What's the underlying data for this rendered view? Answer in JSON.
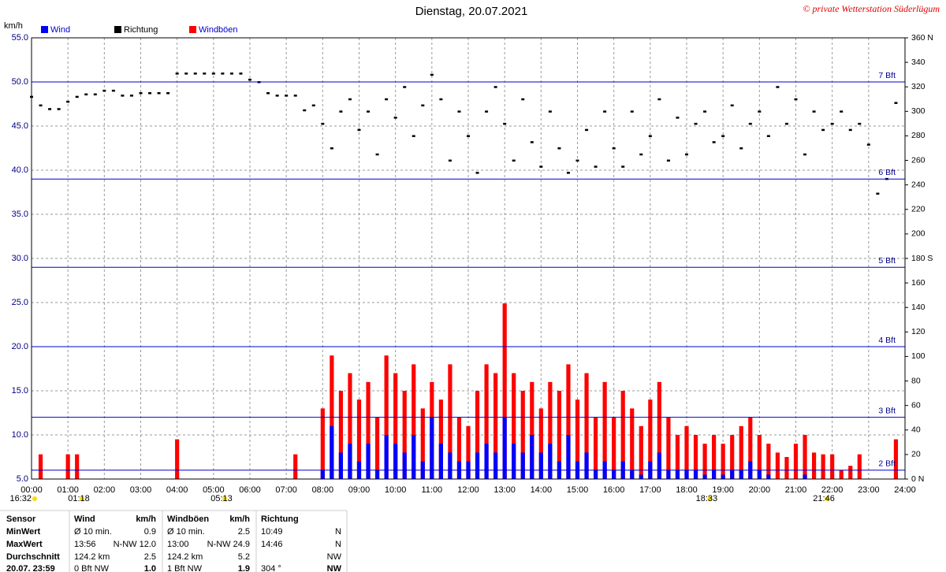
{
  "chart_data": {
    "type": "bar",
    "title": "Dienstag, 20.07.2021",
    "copyright": "© private Wetterstation Süderlügum",
    "y_unit": "km/h",
    "xlim": [
      0,
      24
    ],
    "xticks": [
      {
        "value": 0,
        "label": "00:00"
      },
      {
        "value": 1,
        "label": "01:00"
      },
      {
        "value": 2,
        "label": "02:00"
      },
      {
        "value": 3,
        "label": "03:00"
      },
      {
        "value": 4,
        "label": "04:00"
      },
      {
        "value": 5,
        "label": "05:00"
      },
      {
        "value": 6,
        "label": "06:00"
      },
      {
        "value": 7,
        "label": "07:00"
      },
      {
        "value": 8,
        "label": "08:00"
      },
      {
        "value": 9,
        "label": "09:00"
      },
      {
        "value": 10,
        "label": "10:00"
      },
      {
        "value": 11,
        "label": "11:00"
      },
      {
        "value": 12,
        "label": "12:00"
      },
      {
        "value": 13,
        "label": "13:00"
      },
      {
        "value": 14,
        "label": "14:00"
      },
      {
        "value": 15,
        "label": "15:00"
      },
      {
        "value": 16,
        "label": "16:00"
      },
      {
        "value": 17,
        "label": "17:00"
      },
      {
        "value": 18,
        "label": "18:00"
      },
      {
        "value": 19,
        "label": "19:00"
      },
      {
        "value": 20,
        "label": "20:00"
      },
      {
        "value": 21,
        "label": "21:00"
      },
      {
        "value": 22,
        "label": "22:00"
      },
      {
        "value": 23,
        "label": "23:00"
      },
      {
        "value": 24,
        "label": "24:00"
      }
    ],
    "ylim": [
      5,
      55
    ],
    "yticks": [
      {
        "value": 5,
        "label": "5.0"
      },
      {
        "value": 10,
        "label": "10.0"
      },
      {
        "value": 15,
        "label": "15.0"
      },
      {
        "value": 20,
        "label": "20.0"
      },
      {
        "value": 25,
        "label": "25.0"
      },
      {
        "value": 30,
        "label": "30.0"
      },
      {
        "value": 35,
        "label": "35.0"
      },
      {
        "value": 40,
        "label": "40.0"
      },
      {
        "value": 45,
        "label": "45.0"
      },
      {
        "value": 50,
        "label": "50.0"
      },
      {
        "value": 55,
        "label": "55.0"
      }
    ],
    "y2lim": [
      0,
      360
    ],
    "y2ticks": [
      {
        "value": 0,
        "label": "0  N"
      },
      20,
      40,
      60,
      80,
      100,
      120,
      140,
      160,
      {
        "value": 180,
        "label": "180  S"
      },
      200,
      220,
      240,
      260,
      280,
      300,
      320,
      340,
      {
        "value": 360,
        "label": "360  N"
      }
    ],
    "grid": true,
    "bft_lines": [
      {
        "value": 6,
        "label": "2 Bft"
      },
      {
        "value": 12,
        "label": "3 Bft"
      },
      {
        "value": 20,
        "label": "4 Bft"
      },
      {
        "value": 29,
        "label": "5 Bft"
      },
      {
        "value": 39,
        "label": "6 Bft"
      },
      {
        "value": 50,
        "label": "7 Bft"
      }
    ],
    "bft_color": "#0000cc",
    "x": [
      0,
      0.25,
      0.5,
      0.75,
      1,
      1.25,
      1.5,
      1.75,
      2,
      2.25,
      2.5,
      2.75,
      3,
      3.25,
      3.5,
      3.75,
      4,
      4.25,
      4.5,
      4.75,
      5,
      5.25,
      5.5,
      5.75,
      6,
      6.25,
      6.5,
      6.75,
      7,
      7.25,
      7.5,
      7.75,
      8,
      8.25,
      8.5,
      8.75,
      9,
      9.25,
      9.5,
      9.75,
      10,
      10.25,
      10.5,
      10.75,
      11,
      11.25,
      11.5,
      11.75,
      12,
      12.25,
      12.5,
      12.75,
      13,
      13.25,
      13.5,
      13.75,
      14,
      14.25,
      14.5,
      14.75,
      15,
      15.25,
      15.5,
      15.75,
      16,
      16.25,
      16.5,
      16.75,
      17,
      17.25,
      17.5,
      17.75,
      18,
      18.25,
      18.5,
      18.75,
      19,
      19.25,
      19.5,
      19.75,
      20,
      20.25,
      20.5,
      20.75,
      21,
      21.25,
      21.5,
      21.75,
      22,
      22.25,
      22.5,
      22.75,
      23,
      23.25,
      23.5,
      23.75
    ],
    "series": [
      {
        "name": "Wind",
        "color": "#0000ff",
        "type": "bar",
        "values": [
          1,
          1,
          1,
          1,
          1,
          1,
          1,
          1,
          1,
          1,
          1,
          1,
          1,
          1,
          1,
          1,
          1,
          1,
          1,
          1,
          1,
          1,
          1,
          1,
          1,
          1,
          1,
          1,
          1,
          1,
          1,
          1,
          6,
          11,
          8,
          9,
          7,
          9,
          6,
          10,
          9,
          8,
          10,
          7,
          12,
          9,
          8,
          7,
          7,
          8,
          9,
          8,
          12,
          9,
          8,
          10,
          8,
          9,
          7,
          10,
          7,
          8,
          6,
          7,
          6,
          7,
          6,
          5.5,
          7,
          8,
          6,
          6,
          6,
          6,
          5.5,
          6,
          5.5,
          6,
          6,
          7,
          6,
          5.5,
          5,
          5,
          5,
          5.5,
          5,
          5,
          5,
          4,
          4,
          5,
          3,
          2,
          3,
          1
        ]
      },
      {
        "name": "Richtung",
        "color": "#000000",
        "type": "scatter",
        "axis": "y2",
        "values": [
          312,
          305,
          302,
          302,
          308,
          312,
          314,
          314,
          317,
          317,
          313,
          313,
          315,
          315,
          315,
          315,
          331,
          331,
          331,
          331,
          331,
          331,
          331,
          331,
          326,
          324,
          315,
          313,
          313,
          313,
          301,
          305,
          290,
          270,
          300,
          310,
          285,
          300,
          265,
          310,
          295,
          320,
          280,
          305,
          330,
          310,
          260,
          300,
          280,
          250,
          300,
          320,
          290,
          260,
          310,
          275,
          255,
          300,
          270,
          250,
          260,
          285,
          255,
          300,
          270,
          255,
          300,
          265,
          280,
          310,
          260,
          295,
          265,
          290,
          300,
          275,
          280,
          305,
          270,
          290,
          300,
          280,
          320,
          290,
          310,
          265,
          300,
          285,
          290,
          300,
          285,
          290,
          273,
          233,
          245,
          307
        ]
      },
      {
        "name": "Windböen",
        "color": "#ff0000",
        "type": "bar",
        "values": [
          4,
          7.8,
          4,
          3,
          7.8,
          7.8,
          4,
          3,
          3,
          3,
          3,
          3,
          3,
          3,
          3,
          3,
          9.5,
          4,
          3,
          3,
          4,
          3,
          3,
          3,
          3,
          3,
          3,
          3,
          3,
          7.8,
          3,
          3,
          13,
          19,
          15,
          17,
          14,
          16,
          12,
          19,
          17,
          15,
          18,
          13,
          16,
          14,
          18,
          12,
          11,
          15,
          18,
          17,
          24.9,
          17,
          15,
          16,
          13,
          16,
          15,
          18,
          14,
          17,
          12,
          16,
          12,
          15,
          13,
          11,
          14,
          16,
          12,
          10,
          11,
          10,
          9,
          10,
          9,
          10,
          11,
          12,
          10,
          9,
          8,
          7.5,
          9,
          10,
          8,
          7.8,
          7.8,
          6,
          6.5,
          7.8,
          4,
          3,
          4,
          9.5
        ]
      }
    ],
    "events": [
      {
        "label": "16:32",
        "x": 0
      },
      {
        "label": "01:18",
        "x": 1.3
      },
      {
        "label": "05:13",
        "x": 5.22
      },
      {
        "label": "18:33",
        "x": 18.55
      },
      {
        "label": "21:46",
        "x": 21.77
      }
    ],
    "table": {
      "header": [
        "Sensor",
        "Wind",
        "km/h",
        "Windböen",
        "km/h",
        "Richtung",
        null
      ],
      "rows": [
        [
          "MinWert",
          "Ø 10 min.",
          "0.9",
          "Ø 10 min.",
          "2.5",
          "10:49",
          "N"
        ],
        [
          "MaxWert",
          "13:56",
          "N-NW 12.0",
          "13:00",
          "N-NW 24.9",
          "14:46",
          "N"
        ],
        [
          "Durchschnitt",
          "124.2 km",
          "2.5",
          "124.2 km",
          "5.2",
          null,
          "NW"
        ],
        [
          "20.07. 23:59",
          "0 Bft NW",
          "1.0",
          "1 Bft NW",
          "1.9",
          "304 °",
          "NW"
        ]
      ]
    }
  }
}
